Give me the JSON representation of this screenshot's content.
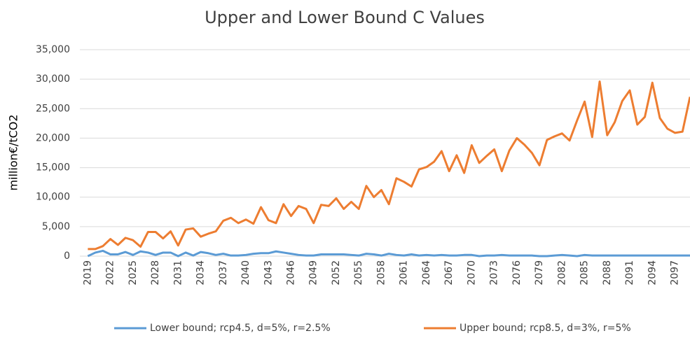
{
  "chart_data": {
    "type": "line",
    "title": "Upper and Lower Bound C Values",
    "y_label": "million€/tCO2",
    "categories": [
      "2019",
      null,
      null,
      "2022",
      null,
      null,
      "2025",
      null,
      null,
      "2028",
      null,
      null,
      "2031",
      null,
      null,
      "2034",
      null,
      null,
      "2037",
      null,
      null,
      "2040",
      null,
      null,
      "2043",
      null,
      null,
      "2046",
      null,
      null,
      "2049",
      null,
      null,
      "2052",
      null,
      null,
      "2055",
      null,
      null,
      "2058",
      null,
      null,
      "2061",
      null,
      null,
      "2064",
      null,
      null,
      "2067",
      null,
      null,
      "2070",
      null,
      null,
      "2073",
      null,
      null,
      "2076",
      null,
      null,
      "2079",
      null,
      null,
      "2082",
      null,
      null,
      "2085",
      null,
      null,
      "2088",
      null,
      null,
      "2091",
      null,
      null,
      "2094",
      null,
      null,
      "2097",
      null,
      null
    ],
    "series": [
      {
        "name": "Lower bound; rcp4.5, d=5%, r=2.5%",
        "color": "#5b9bd5",
        "values": [
          0,
          600,
          900,
          300,
          300,
          700,
          200,
          800,
          600,
          200,
          600,
          600,
          0,
          600,
          100,
          700,
          500,
          200,
          400,
          100,
          100,
          200,
          400,
          500,
          500,
          800,
          600,
          400,
          200,
          100,
          100,
          300,
          300,
          300,
          300,
          200,
          100,
          400,
          300,
          100,
          400,
          200,
          100,
          300,
          100,
          200,
          100,
          200,
          100,
          100,
          200,
          200,
          0,
          100,
          100,
          200,
          100,
          100,
          100,
          100,
          0,
          0,
          100,
          200,
          100,
          0,
          200,
          100,
          100,
          100,
          100,
          100,
          100,
          100,
          100,
          100,
          100,
          100,
          100,
          100,
          100
        ]
      },
      {
        "name": "Upper bound; rcp8.5, d=3%, r=5%",
        "color": "#ed7d31",
        "values": [
          1200,
          1200,
          1700,
          2900,
          1900,
          3100,
          2700,
          1600,
          4100,
          4100,
          3000,
          4200,
          1800,
          4500,
          4700,
          3300,
          3800,
          4200,
          6000,
          6500,
          5600,
          6200,
          5500,
          8300,
          6100,
          5600,
          8800,
          6800,
          8500,
          8000,
          5600,
          8700,
          8500,
          9800,
          8000,
          9200,
          8000,
          11900,
          10000,
          11200,
          8800,
          13200,
          12600,
          11800,
          14700,
          15100,
          16000,
          17800,
          14400,
          17100,
          14100,
          18800,
          15800,
          17000,
          18100,
          14400,
          17900,
          20000,
          18900,
          17500,
          15400,
          19700,
          20300,
          20800,
          19600,
          23000,
          26200,
          20200,
          29600,
          20500,
          22700,
          26300,
          28100,
          22300,
          23600,
          29400,
          23400,
          21600,
          20900,
          21100,
          27000
        ]
      }
    ],
    "ylim": [
      0,
      35000
    ],
    "yticks": [
      0,
      {
        "value": 5000,
        "label": "5,000"
      },
      {
        "value": 10000,
        "label": "10,000"
      },
      {
        "value": 15000,
        "label": "15,000"
      },
      {
        "value": 20000,
        "label": "20,000"
      },
      {
        "value": 25000,
        "label": "25,000"
      },
      {
        "value": 30000,
        "label": "30,000"
      },
      {
        "value": 35000,
        "label": "35,000"
      }
    ],
    "grid": true,
    "legend": "bottom"
  }
}
